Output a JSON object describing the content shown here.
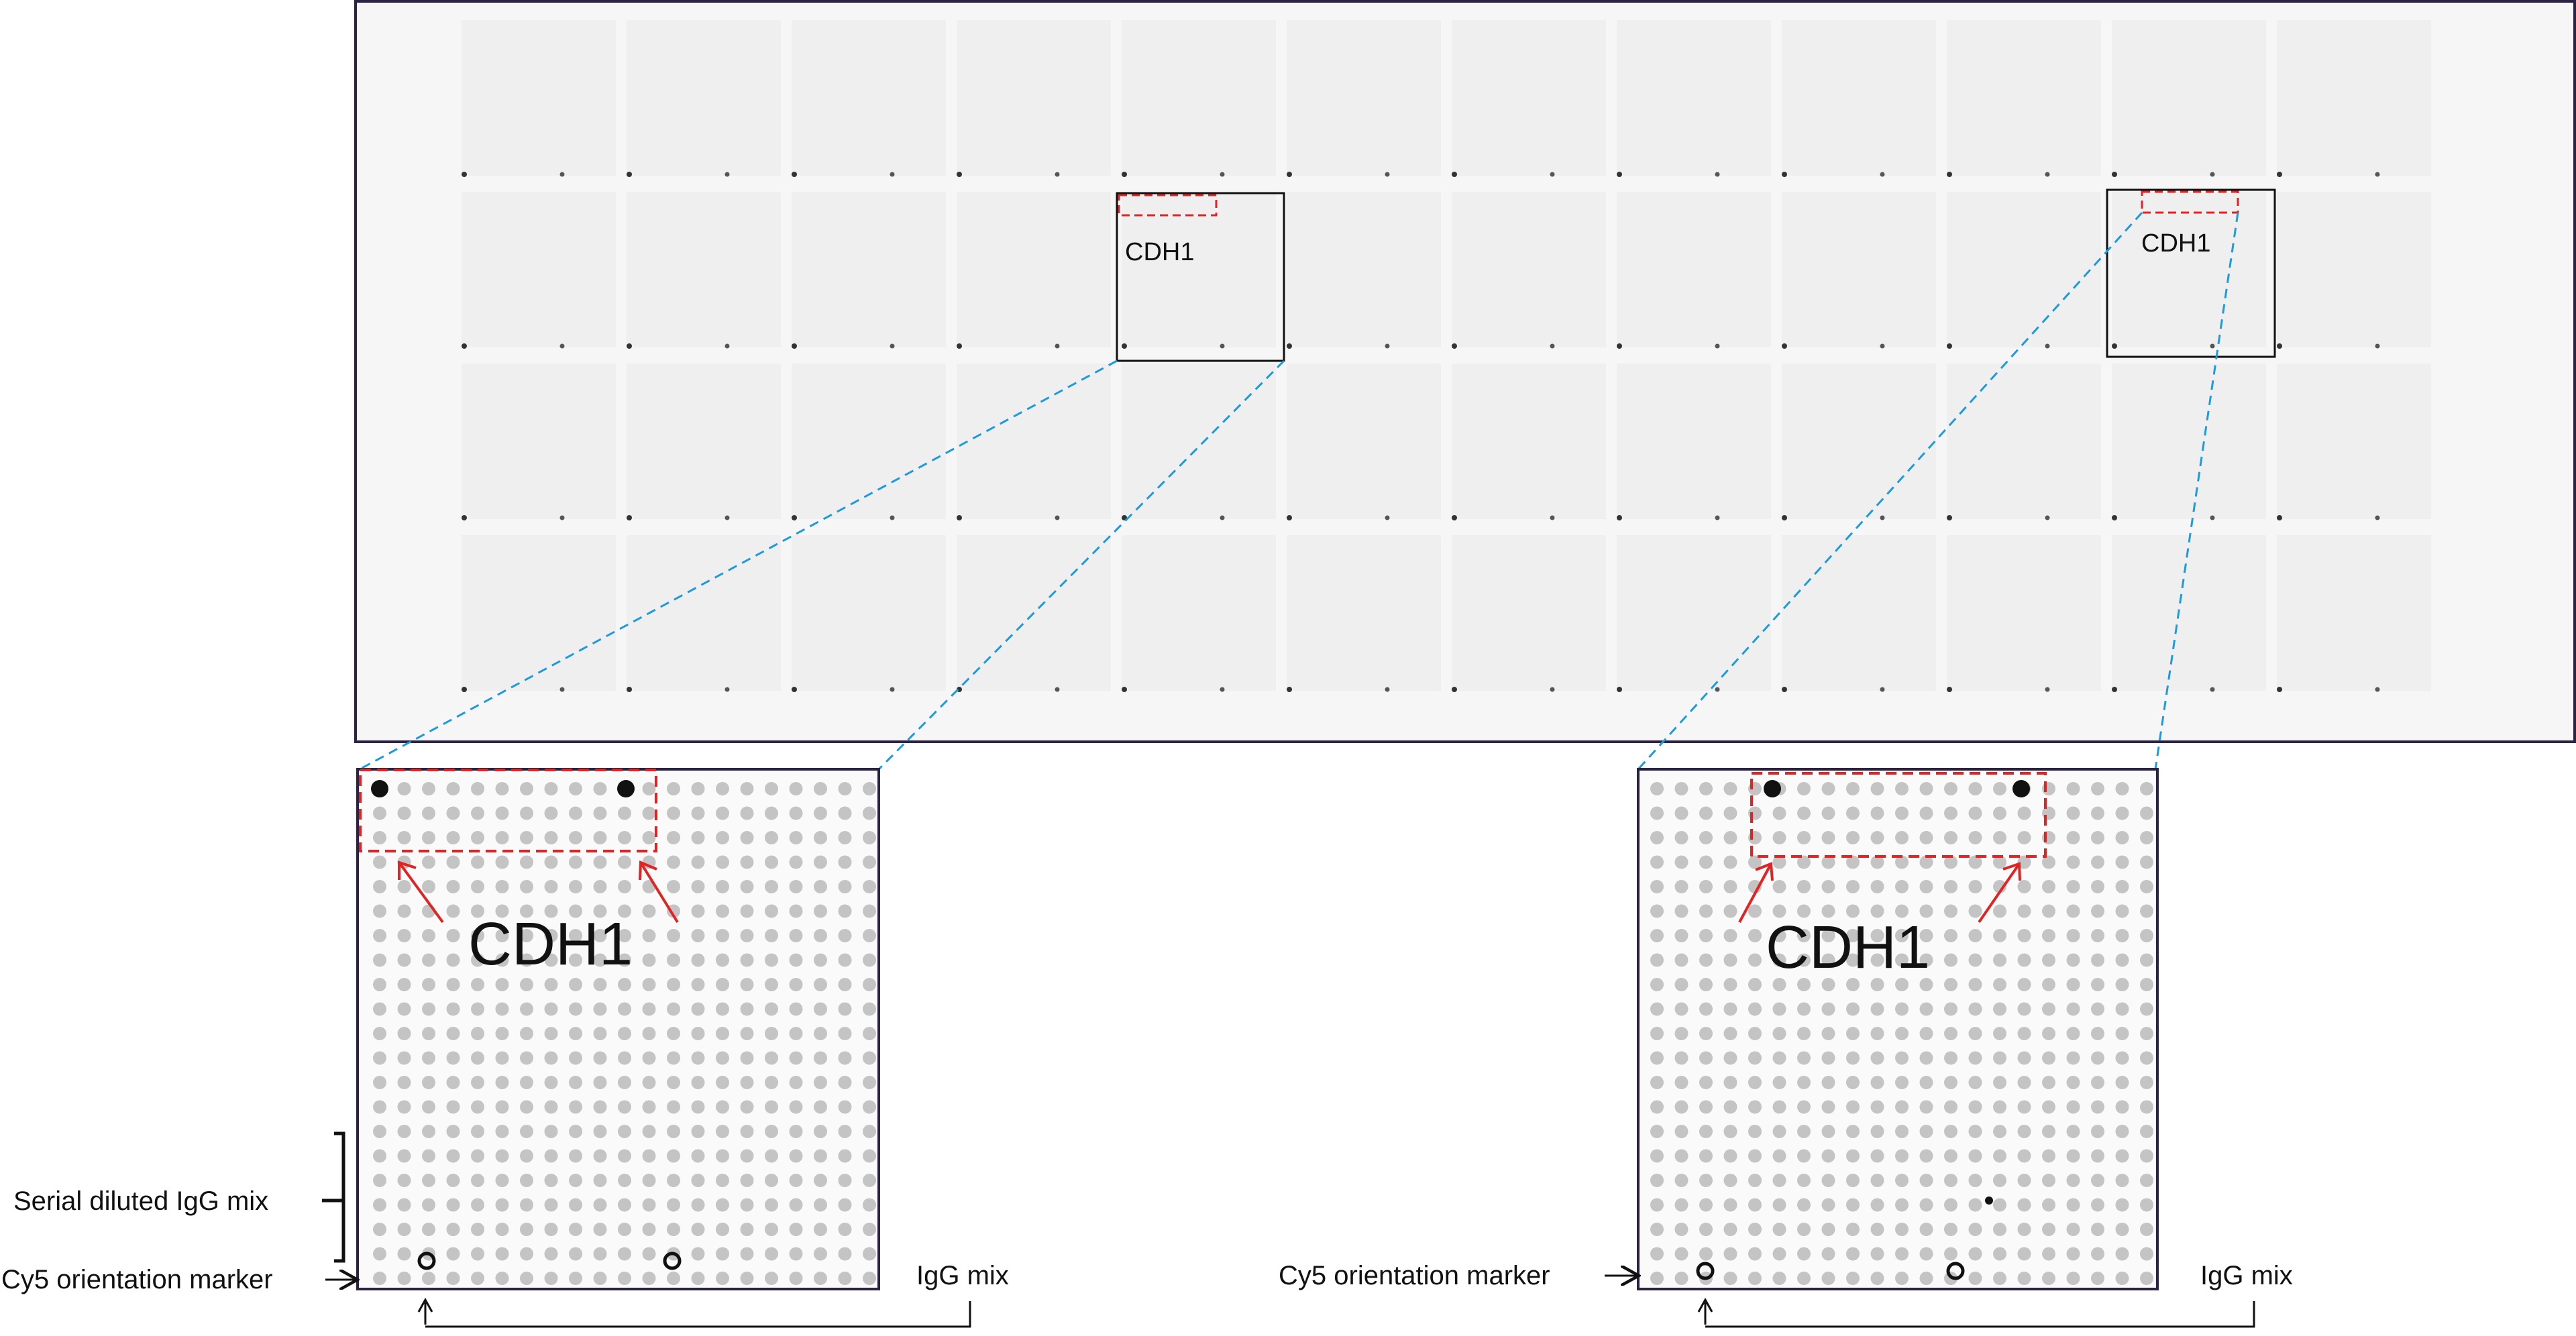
{
  "overview": {
    "callouts": [
      {
        "label": "CDH1"
      },
      {
        "label": "CDH1"
      }
    ]
  },
  "zoom_panels": [
    {
      "protein_label": "CDH1",
      "left_labels": [
        "Serial diluted IgG mix",
        "Cy5 orientation marker"
      ],
      "bottom_label": "IgG mix"
    },
    {
      "protein_label": "CDH1",
      "left_labels": [
        "Cy5 orientation marker"
      ],
      "bottom_label": "IgG mix"
    }
  ],
  "colors": {
    "frame": "#2b2244",
    "dashed_red": "#e02424",
    "dashed_blue": "#1e9bd8",
    "arrow_red": "#e02424",
    "spot": "#bfbfbf",
    "marker": "#111111"
  }
}
